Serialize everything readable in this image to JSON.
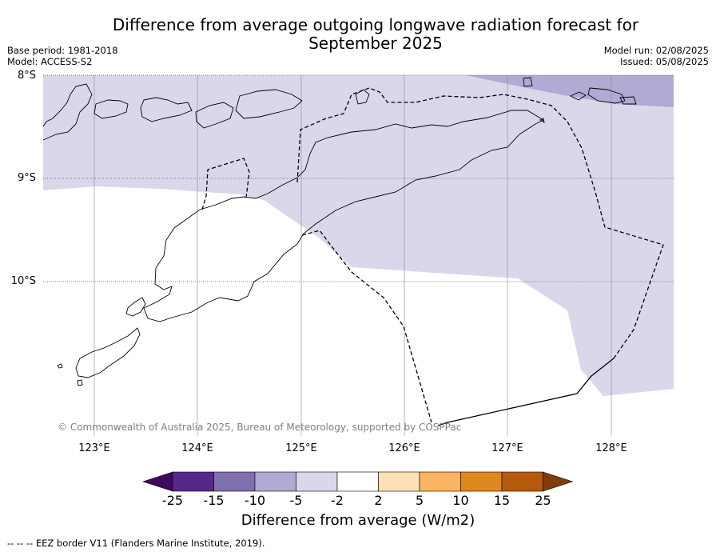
{
  "title": "Difference from average outgoing longwave radiation forecast for September 2025",
  "title_line1": "Difference from average outgoing longwave radiation forecast for",
  "title_line2": "September 2025",
  "meta_left": {
    "base_period": "Base period: 1981-2018",
    "model": "Model: ACCESS-S2"
  },
  "meta_right": {
    "model_run": "Model run: 02/08/2025",
    "issued": "Issued: 05/08/2025"
  },
  "map": {
    "lat_labels": [
      "8°S",
      "9°S",
      "10°S"
    ],
    "lon_labels": [
      "123°E",
      "124°E",
      "125°E",
      "126°E",
      "127°E",
      "128°E"
    ],
    "copyright": "© Commonwealth of Australia 2025, Bureau of Meteorology, supported by COSPPac",
    "fill_colors": {
      "minus5_to_minus2": "#d8d8ea",
      "minus10_to_minus5": "#b0aad4",
      "neutral": "#ffffff"
    }
  },
  "colorbar": {
    "ticks": [
      "-25",
      "-15",
      "-10",
      "-5",
      "-2",
      "2",
      "5",
      "10",
      "15",
      "25"
    ],
    "colors": [
      "#3f0a5e",
      "#57288a",
      "#7f6faf",
      "#b0aad4",
      "#d8d8ea",
      "#ffffff",
      "#fde0b6",
      "#fbb462",
      "#e08820",
      "#b55a0c",
      "#7f3c0a"
    ],
    "label": "Difference from average (W/m2)"
  },
  "footnote": "--  --  -- EEZ border V11 (Flanders Marine Institute, 2019)."
}
